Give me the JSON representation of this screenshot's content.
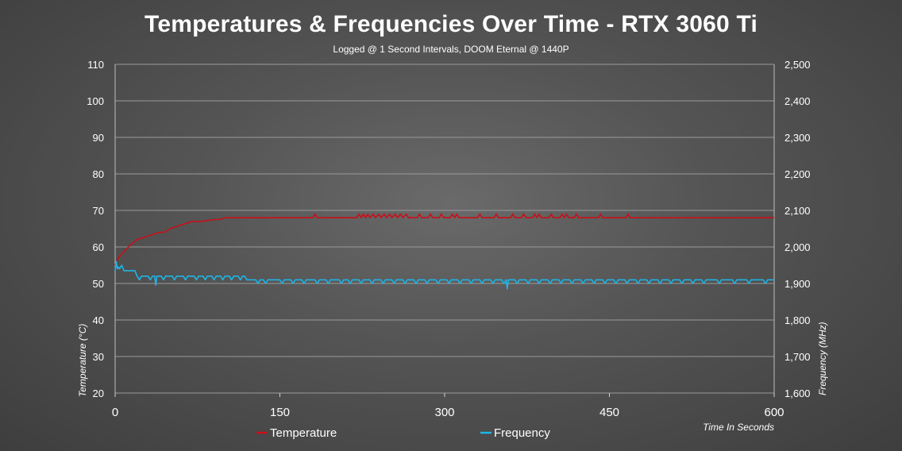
{
  "chart_data": {
    "type": "line",
    "title": "Temperatures & Frequencies Over Time - RTX 3060 Ti",
    "subtitle": "Logged @ 1 Second Intervals, DOOM Eternal @ 1440P",
    "xlabel": "Time In Seconds",
    "ylabel_left": "Temperature (°C)",
    "ylabel_right": "Frequency  (MHz)",
    "xlim": [
      0,
      600
    ],
    "x_ticks": [
      "0",
      "150",
      "300",
      "450",
      "600"
    ],
    "ylim_left": [
      20,
      110
    ],
    "y_ticks_left": [
      "20",
      "30",
      "40",
      "50",
      "60",
      "70",
      "80",
      "90",
      "100",
      "110"
    ],
    "ylim_right": [
      1600,
      2500
    ],
    "y_ticks_right": [
      "1,600",
      "1,700",
      "1,800",
      "1,900",
      "2,000",
      "2,100",
      "2,200",
      "2,300",
      "2,400",
      "2,500"
    ],
    "grid": true,
    "legend_position": "bottom",
    "series": [
      {
        "name": "Temperature",
        "axis": "left",
        "color": "#c8101a",
        "points": [
          [
            0,
            55
          ],
          [
            3,
            57
          ],
          [
            6,
            58
          ],
          [
            9,
            59
          ],
          [
            12,
            60
          ],
          [
            16,
            61
          ],
          [
            20,
            62
          ],
          [
            25,
            62.5
          ],
          [
            30,
            63
          ],
          [
            35,
            63.5
          ],
          [
            40,
            64
          ],
          [
            45,
            64
          ],
          [
            50,
            65
          ],
          [
            55,
            65.5
          ],
          [
            60,
            66
          ],
          [
            65,
            66.5
          ],
          [
            70,
            67
          ],
          [
            75,
            67
          ],
          [
            80,
            67
          ],
          [
            85,
            67.3
          ],
          [
            90,
            67.5
          ],
          [
            95,
            67.5
          ],
          [
            100,
            68
          ],
          [
            110,
            68
          ],
          [
            150,
            68
          ],
          [
            180,
            68
          ],
          [
            182,
            69
          ],
          [
            184,
            68
          ],
          [
            220,
            68
          ],
          [
            222,
            69
          ],
          [
            224,
            68
          ],
          [
            226,
            69
          ],
          [
            228,
            68
          ],
          [
            230,
            69
          ],
          [
            232,
            68
          ],
          [
            235,
            69
          ],
          [
            237,
            68
          ],
          [
            240,
            69
          ],
          [
            242,
            68
          ],
          [
            245,
            69
          ],
          [
            247,
            68
          ],
          [
            250,
            69
          ],
          [
            252,
            68
          ],
          [
            255,
            69
          ],
          [
            257,
            68
          ],
          [
            260,
            69
          ],
          [
            262,
            68
          ],
          [
            265,
            69
          ],
          [
            267,
            68
          ],
          [
            275,
            68
          ],
          [
            277,
            69
          ],
          [
            279,
            68
          ],
          [
            285,
            68
          ],
          [
            287,
            69
          ],
          [
            289,
            68
          ],
          [
            295,
            68
          ],
          [
            297,
            69
          ],
          [
            299,
            68
          ],
          [
            305,
            68
          ],
          [
            307,
            69
          ],
          [
            309,
            68
          ],
          [
            311,
            69
          ],
          [
            313,
            68
          ],
          [
            330,
            68
          ],
          [
            332,
            69
          ],
          [
            334,
            68
          ],
          [
            345,
            68
          ],
          [
            347,
            69
          ],
          [
            349,
            68
          ],
          [
            360,
            68
          ],
          [
            362,
            69
          ],
          [
            364,
            68
          ],
          [
            370,
            68
          ],
          [
            372,
            69
          ],
          [
            374,
            68
          ],
          [
            380,
            68
          ],
          [
            382,
            69
          ],
          [
            384,
            68
          ],
          [
            386,
            69
          ],
          [
            388,
            68
          ],
          [
            395,
            68
          ],
          [
            397,
            69
          ],
          [
            399,
            68
          ],
          [
            405,
            68
          ],
          [
            407,
            69
          ],
          [
            409,
            68
          ],
          [
            411,
            69
          ],
          [
            413,
            68
          ],
          [
            418,
            68
          ],
          [
            420,
            69
          ],
          [
            422,
            68
          ],
          [
            440,
            68
          ],
          [
            442,
            69
          ],
          [
            444,
            68
          ],
          [
            465,
            68
          ],
          [
            467,
            69
          ],
          [
            469,
            68
          ],
          [
            500,
            68
          ],
          [
            550,
            68
          ],
          [
            600,
            68
          ]
        ]
      },
      {
        "name": "Frequency",
        "axis": "right",
        "color": "#1eb4e6",
        "points": [
          [
            0,
            1935
          ],
          [
            1,
            1960
          ],
          [
            2,
            1940
          ],
          [
            3,
            1945
          ],
          [
            4,
            1940
          ],
          [
            6,
            1950
          ],
          [
            8,
            1935
          ],
          [
            10,
            1935
          ],
          [
            15,
            1935
          ],
          [
            18,
            1935
          ],
          [
            20,
            1920
          ],
          [
            22,
            1910
          ],
          [
            24,
            1920
          ],
          [
            30,
            1920
          ],
          [
            32,
            1910
          ],
          [
            34,
            1920
          ],
          [
            36,
            1920
          ],
          [
            37,
            1895
          ],
          [
            38,
            1920
          ],
          [
            42,
            1920
          ],
          [
            44,
            1910
          ],
          [
            46,
            1920
          ],
          [
            52,
            1920
          ],
          [
            54,
            1910
          ],
          [
            56,
            1920
          ],
          [
            62,
            1920
          ],
          [
            64,
            1910
          ],
          [
            66,
            1920
          ],
          [
            72,
            1920
          ],
          [
            74,
            1910
          ],
          [
            76,
            1920
          ],
          [
            80,
            1920
          ],
          [
            82,
            1910
          ],
          [
            84,
            1920
          ],
          [
            88,
            1920
          ],
          [
            90,
            1910
          ],
          [
            92,
            1920
          ],
          [
            96,
            1920
          ],
          [
            98,
            1910
          ],
          [
            100,
            1920
          ],
          [
            104,
            1920
          ],
          [
            106,
            1910
          ],
          [
            108,
            1920
          ],
          [
            112,
            1920
          ],
          [
            114,
            1910
          ],
          [
            116,
            1920
          ],
          [
            118,
            1920
          ],
          [
            120,
            1910
          ],
          [
            128,
            1910
          ],
          [
            130,
            1900
          ],
          [
            132,
            1910
          ],
          [
            135,
            1910
          ],
          [
            137,
            1900
          ],
          [
            139,
            1910
          ],
          [
            150,
            1910
          ],
          [
            152,
            1900
          ],
          [
            154,
            1910
          ],
          [
            160,
            1910
          ],
          [
            162,
            1900
          ],
          [
            164,
            1910
          ],
          [
            170,
            1910
          ],
          [
            172,
            1900
          ],
          [
            174,
            1910
          ],
          [
            182,
            1910
          ],
          [
            184,
            1900
          ],
          [
            186,
            1910
          ],
          [
            192,
            1910
          ],
          [
            194,
            1900
          ],
          [
            196,
            1910
          ],
          [
            204,
            1910
          ],
          [
            206,
            1900
          ],
          [
            208,
            1910
          ],
          [
            212,
            1910
          ],
          [
            214,
            1900
          ],
          [
            216,
            1910
          ],
          [
            222,
            1910
          ],
          [
            224,
            1900
          ],
          [
            226,
            1910
          ],
          [
            232,
            1910
          ],
          [
            234,
            1900
          ],
          [
            236,
            1910
          ],
          [
            242,
            1910
          ],
          [
            244,
            1900
          ],
          [
            246,
            1910
          ],
          [
            252,
            1910
          ],
          [
            254,
            1900
          ],
          [
            256,
            1910
          ],
          [
            262,
            1910
          ],
          [
            264,
            1900
          ],
          [
            266,
            1910
          ],
          [
            272,
            1910
          ],
          [
            274,
            1900
          ],
          [
            276,
            1910
          ],
          [
            282,
            1910
          ],
          [
            284,
            1900
          ],
          [
            286,
            1910
          ],
          [
            292,
            1910
          ],
          [
            294,
            1900
          ],
          [
            296,
            1910
          ],
          [
            302,
            1910
          ],
          [
            304,
            1900
          ],
          [
            306,
            1910
          ],
          [
            312,
            1910
          ],
          [
            314,
            1900
          ],
          [
            316,
            1910
          ],
          [
            322,
            1910
          ],
          [
            324,
            1900
          ],
          [
            326,
            1910
          ],
          [
            332,
            1910
          ],
          [
            334,
            1900
          ],
          [
            336,
            1910
          ],
          [
            342,
            1910
          ],
          [
            344,
            1900
          ],
          [
            346,
            1910
          ],
          [
            352,
            1910
          ],
          [
            354,
            1900
          ],
          [
            356,
            1910
          ],
          [
            357,
            1885
          ],
          [
            358,
            1910
          ],
          [
            364,
            1910
          ],
          [
            366,
            1900
          ],
          [
            368,
            1910
          ],
          [
            374,
            1910
          ],
          [
            376,
            1900
          ],
          [
            378,
            1910
          ],
          [
            384,
            1910
          ],
          [
            386,
            1900
          ],
          [
            388,
            1910
          ],
          [
            394,
            1910
          ],
          [
            396,
            1900
          ],
          [
            398,
            1910
          ],
          [
            404,
            1910
          ],
          [
            406,
            1900
          ],
          [
            408,
            1910
          ],
          [
            414,
            1910
          ],
          [
            416,
            1900
          ],
          [
            418,
            1910
          ],
          [
            424,
            1910
          ],
          [
            426,
            1900
          ],
          [
            428,
            1910
          ],
          [
            434,
            1910
          ],
          [
            436,
            1900
          ],
          [
            438,
            1910
          ],
          [
            444,
            1910
          ],
          [
            446,
            1900
          ],
          [
            448,
            1910
          ],
          [
            454,
            1910
          ],
          [
            456,
            1900
          ],
          [
            458,
            1910
          ],
          [
            464,
            1910
          ],
          [
            466,
            1900
          ],
          [
            468,
            1910
          ],
          [
            474,
            1910
          ],
          [
            476,
            1900
          ],
          [
            478,
            1910
          ],
          [
            484,
            1910
          ],
          [
            486,
            1900
          ],
          [
            488,
            1910
          ],
          [
            494,
            1910
          ],
          [
            496,
            1900
          ],
          [
            498,
            1910
          ],
          [
            504,
            1910
          ],
          [
            506,
            1900
          ],
          [
            508,
            1910
          ],
          [
            514,
            1910
          ],
          [
            516,
            1900
          ],
          [
            518,
            1910
          ],
          [
            524,
            1910
          ],
          [
            526,
            1900
          ],
          [
            528,
            1910
          ],
          [
            534,
            1910
          ],
          [
            536,
            1900
          ],
          [
            538,
            1910
          ],
          [
            548,
            1910
          ],
          [
            550,
            1900
          ],
          [
            552,
            1910
          ],
          [
            562,
            1910
          ],
          [
            564,
            1900
          ],
          [
            566,
            1910
          ],
          [
            575,
            1910
          ],
          [
            577,
            1900
          ],
          [
            579,
            1910
          ],
          [
            590,
            1910
          ],
          [
            592,
            1900
          ],
          [
            594,
            1910
          ],
          [
            600,
            1910
          ]
        ]
      }
    ]
  }
}
